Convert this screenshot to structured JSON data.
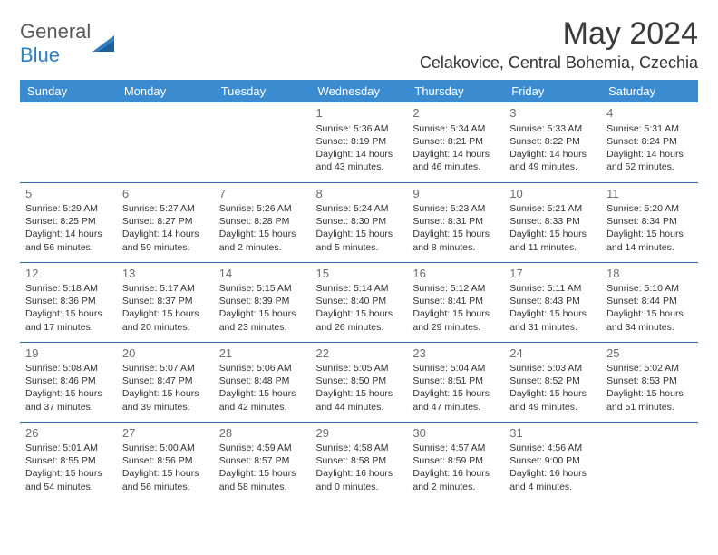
{
  "logo": {
    "word1": "General",
    "word2": "Blue"
  },
  "title": "May 2024",
  "location": "Celakovice, Central Bohemia, Czechia",
  "colors": {
    "header_bg": "#3b8bd0",
    "header_text": "#ffffff",
    "row_border": "#2f6fa8",
    "daynum": "#6d6d6d",
    "body_text": "#333333",
    "logo_gray": "#5a5a5a",
    "logo_blue": "#2f7fc2"
  },
  "weekdays": [
    "Sunday",
    "Monday",
    "Tuesday",
    "Wednesday",
    "Thursday",
    "Friday",
    "Saturday"
  ],
  "weeks": [
    [
      null,
      null,
      null,
      {
        "d": "1",
        "sr": "5:36 AM",
        "ss": "8:19 PM",
        "dl": "14 hours and 43 minutes."
      },
      {
        "d": "2",
        "sr": "5:34 AM",
        "ss": "8:21 PM",
        "dl": "14 hours and 46 minutes."
      },
      {
        "d": "3",
        "sr": "5:33 AM",
        "ss": "8:22 PM",
        "dl": "14 hours and 49 minutes."
      },
      {
        "d": "4",
        "sr": "5:31 AM",
        "ss": "8:24 PM",
        "dl": "14 hours and 52 minutes."
      }
    ],
    [
      {
        "d": "5",
        "sr": "5:29 AM",
        "ss": "8:25 PM",
        "dl": "14 hours and 56 minutes."
      },
      {
        "d": "6",
        "sr": "5:27 AM",
        "ss": "8:27 PM",
        "dl": "14 hours and 59 minutes."
      },
      {
        "d": "7",
        "sr": "5:26 AM",
        "ss": "8:28 PM",
        "dl": "15 hours and 2 minutes."
      },
      {
        "d": "8",
        "sr": "5:24 AM",
        "ss": "8:30 PM",
        "dl": "15 hours and 5 minutes."
      },
      {
        "d": "9",
        "sr": "5:23 AM",
        "ss": "8:31 PM",
        "dl": "15 hours and 8 minutes."
      },
      {
        "d": "10",
        "sr": "5:21 AM",
        "ss": "8:33 PM",
        "dl": "15 hours and 11 minutes."
      },
      {
        "d": "11",
        "sr": "5:20 AM",
        "ss": "8:34 PM",
        "dl": "15 hours and 14 minutes."
      }
    ],
    [
      {
        "d": "12",
        "sr": "5:18 AM",
        "ss": "8:36 PM",
        "dl": "15 hours and 17 minutes."
      },
      {
        "d": "13",
        "sr": "5:17 AM",
        "ss": "8:37 PM",
        "dl": "15 hours and 20 minutes."
      },
      {
        "d": "14",
        "sr": "5:15 AM",
        "ss": "8:39 PM",
        "dl": "15 hours and 23 minutes."
      },
      {
        "d": "15",
        "sr": "5:14 AM",
        "ss": "8:40 PM",
        "dl": "15 hours and 26 minutes."
      },
      {
        "d": "16",
        "sr": "5:12 AM",
        "ss": "8:41 PM",
        "dl": "15 hours and 29 minutes."
      },
      {
        "d": "17",
        "sr": "5:11 AM",
        "ss": "8:43 PM",
        "dl": "15 hours and 31 minutes."
      },
      {
        "d": "18",
        "sr": "5:10 AM",
        "ss": "8:44 PM",
        "dl": "15 hours and 34 minutes."
      }
    ],
    [
      {
        "d": "19",
        "sr": "5:08 AM",
        "ss": "8:46 PM",
        "dl": "15 hours and 37 minutes."
      },
      {
        "d": "20",
        "sr": "5:07 AM",
        "ss": "8:47 PM",
        "dl": "15 hours and 39 minutes."
      },
      {
        "d": "21",
        "sr": "5:06 AM",
        "ss": "8:48 PM",
        "dl": "15 hours and 42 minutes."
      },
      {
        "d": "22",
        "sr": "5:05 AM",
        "ss": "8:50 PM",
        "dl": "15 hours and 44 minutes."
      },
      {
        "d": "23",
        "sr": "5:04 AM",
        "ss": "8:51 PM",
        "dl": "15 hours and 47 minutes."
      },
      {
        "d": "24",
        "sr": "5:03 AM",
        "ss": "8:52 PM",
        "dl": "15 hours and 49 minutes."
      },
      {
        "d": "25",
        "sr": "5:02 AM",
        "ss": "8:53 PM",
        "dl": "15 hours and 51 minutes."
      }
    ],
    [
      {
        "d": "26",
        "sr": "5:01 AM",
        "ss": "8:55 PM",
        "dl": "15 hours and 54 minutes."
      },
      {
        "d": "27",
        "sr": "5:00 AM",
        "ss": "8:56 PM",
        "dl": "15 hours and 56 minutes."
      },
      {
        "d": "28",
        "sr": "4:59 AM",
        "ss": "8:57 PM",
        "dl": "15 hours and 58 minutes."
      },
      {
        "d": "29",
        "sr": "4:58 AM",
        "ss": "8:58 PM",
        "dl": "16 hours and 0 minutes."
      },
      {
        "d": "30",
        "sr": "4:57 AM",
        "ss": "8:59 PM",
        "dl": "16 hours and 2 minutes."
      },
      {
        "d": "31",
        "sr": "4:56 AM",
        "ss": "9:00 PM",
        "dl": "16 hours and 4 minutes."
      },
      null
    ]
  ],
  "labels": {
    "sunrise": "Sunrise: ",
    "sunset": "Sunset: ",
    "daylight": "Daylight: "
  }
}
